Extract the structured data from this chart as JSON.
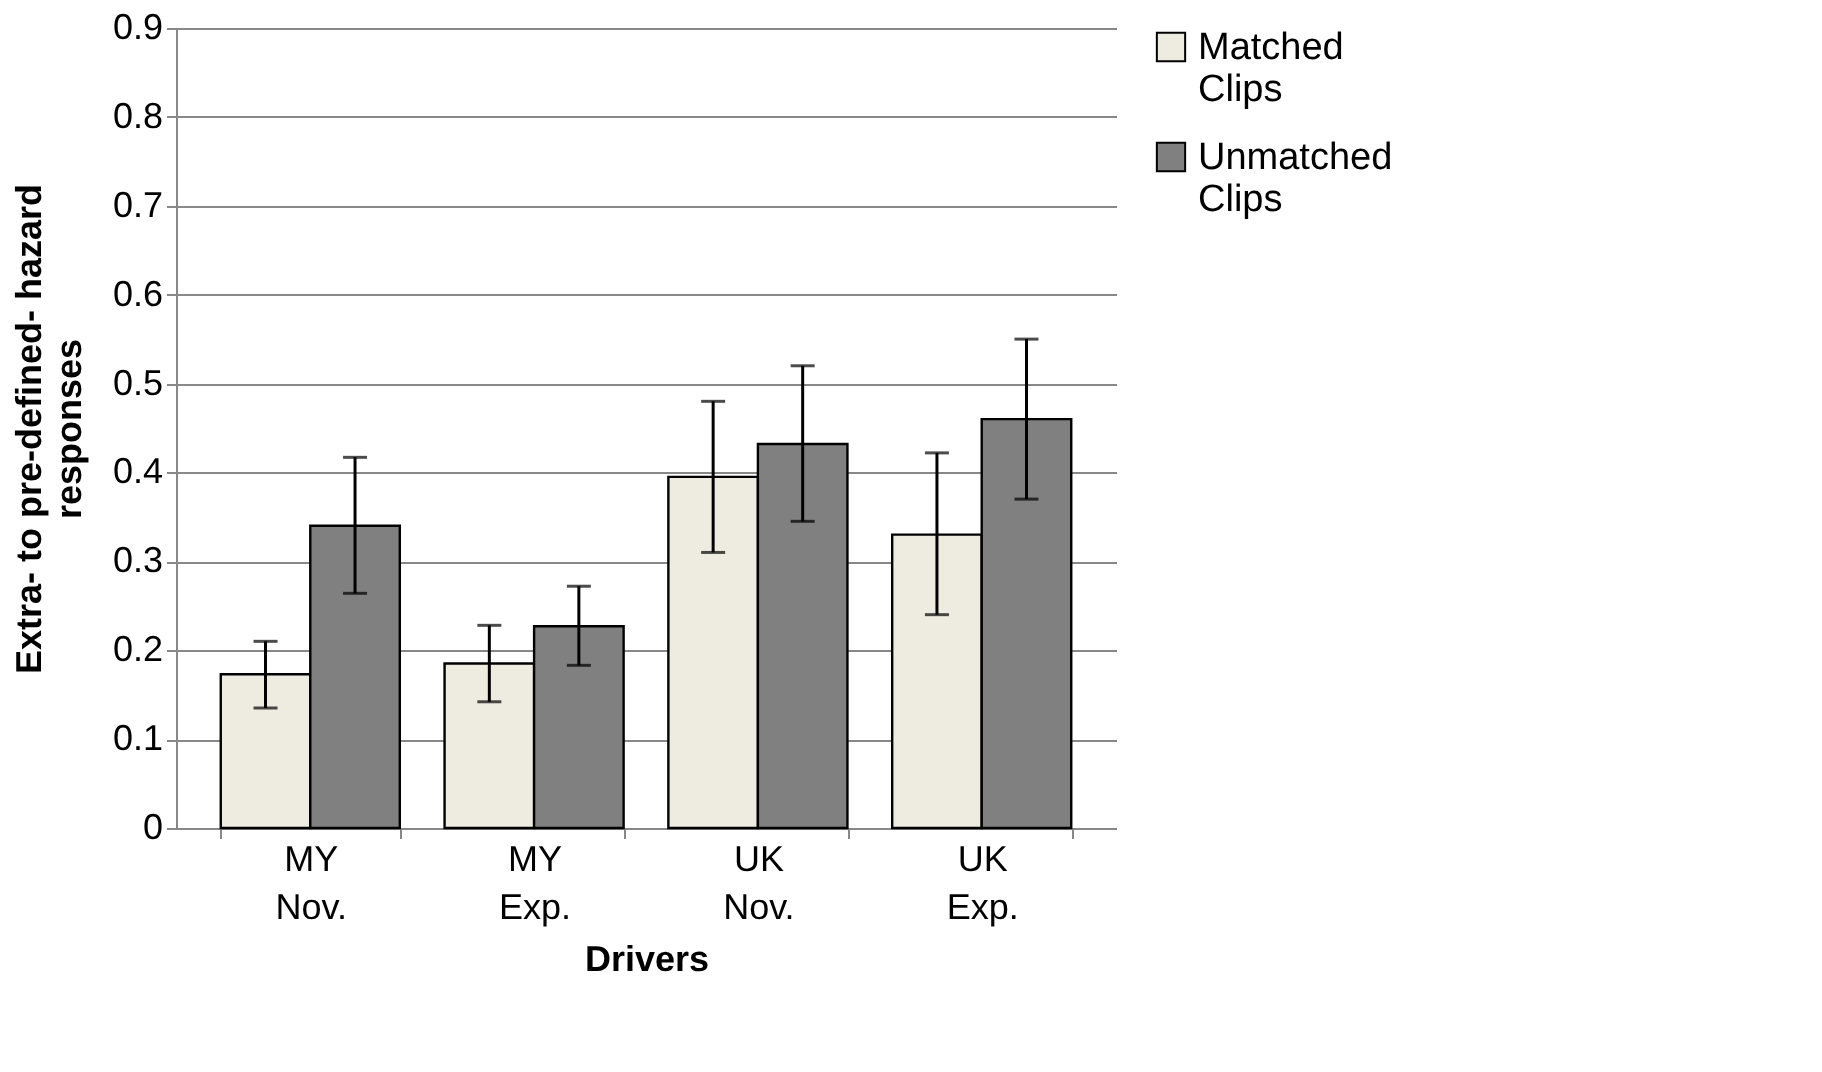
{
  "chart_data": {
    "type": "bar",
    "xlabel": "Drivers",
    "ylabel": "Extra- to pre-defined- hazard responses",
    "categories": [
      "MY Nov.",
      "MY Exp.",
      "UK Nov.",
      "UK Exp."
    ],
    "series": [
      {
        "name": "Matched Clips",
        "color": "#eeece1",
        "values": [
          0.173,
          0.185,
          0.395,
          0.33
        ],
        "errors": [
          [
            0.135,
            0.21
          ],
          [
            0.142,
            0.228
          ],
          [
            0.31,
            0.48
          ],
          [
            0.24,
            0.422
          ]
        ]
      },
      {
        "name": "Unmatched Clips",
        "color": "#808080",
        "values": [
          0.34,
          0.227,
          0.432,
          0.46
        ],
        "errors": [
          [
            0.264,
            0.417
          ],
          [
            0.183,
            0.272
          ],
          [
            0.345,
            0.52
          ],
          [
            0.37,
            0.55
          ]
        ]
      }
    ],
    "ylim": [
      0,
      0.9
    ],
    "yticks": [
      0,
      0.1,
      0.2,
      0.3,
      0.4,
      0.5,
      0.6,
      0.7,
      0.8,
      0.9
    ],
    "grid": "y",
    "legend": "right"
  }
}
